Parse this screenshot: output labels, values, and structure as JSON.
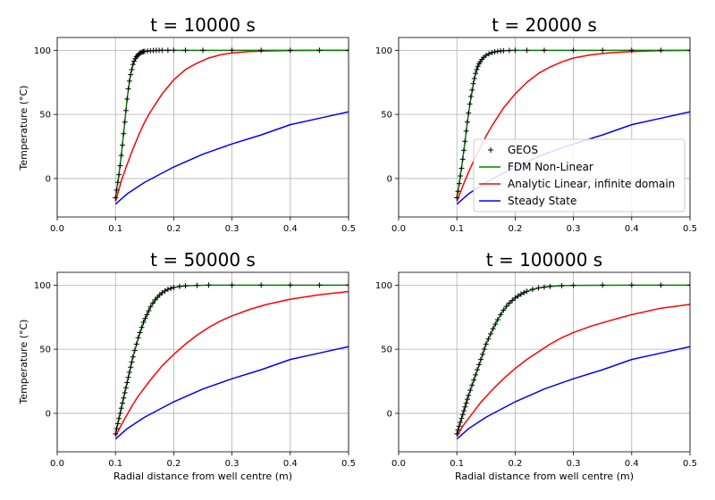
{
  "chart_data": [
    {
      "type": "line",
      "title": "t = 10000 s",
      "xlabel": "",
      "ylabel": "Temperature (°C)",
      "xlim": [
        0.0,
        0.5
      ],
      "ylim": [
        -30,
        110
      ],
      "xticks": [
        0.0,
        0.1,
        0.2,
        0.3,
        0.4,
        0.5
      ],
      "xtick_labels": [
        "0.0",
        "0.1",
        "0.2",
        "0.3",
        "0.4",
        "0.5"
      ],
      "yticks": [
        0,
        50,
        100
      ],
      "ytick_labels": [
        "0",
        "50",
        "100"
      ],
      "grid": true,
      "legend": null,
      "series": [
        {
          "name": "GEOS",
          "style": "markers",
          "color": "#000000",
          "x": [
            0.1,
            0.102,
            0.104,
            0.106,
            0.108,
            0.11,
            0.112,
            0.114,
            0.116,
            0.118,
            0.12,
            0.122,
            0.124,
            0.126,
            0.128,
            0.13,
            0.132,
            0.134,
            0.136,
            0.138,
            0.14,
            0.142,
            0.144,
            0.146,
            0.148,
            0.15,
            0.155,
            0.16,
            0.165,
            0.17,
            0.175,
            0.18,
            0.19,
            0.2,
            0.22,
            0.25,
            0.3,
            0.35,
            0.4,
            0.45,
            0.5
          ],
          "y": [
            -15,
            -9,
            -3,
            3,
            10,
            18,
            26,
            35,
            44,
            53,
            62,
            70,
            76,
            81,
            85,
            89,
            91.5,
            93.5,
            95,
            96,
            97,
            97.8,
            98.3,
            98.7,
            99.0,
            99.2,
            99.5,
            99.7,
            99.8,
            99.9,
            100,
            100,
            100,
            100,
            100,
            100,
            100,
            100,
            100,
            100,
            100
          ]
        },
        {
          "name": "FDM Non-Linear",
          "style": "line",
          "color": "#008000",
          "x": [
            0.1,
            0.105,
            0.11,
            0.115,
            0.12,
            0.125,
            0.13,
            0.135,
            0.14,
            0.145,
            0.15,
            0.16,
            0.17,
            0.18,
            0.2,
            0.25,
            0.3,
            0.4,
            0.5
          ],
          "y": [
            -15,
            0,
            18,
            40,
            62,
            79,
            89,
            94,
            97,
            98.5,
            99.2,
            99.7,
            99.9,
            100,
            100,
            100,
            100,
            100,
            100
          ]
        },
        {
          "name": "Analytic Linear, infinite domain",
          "style": "line",
          "color": "#ff0000",
          "x": [
            0.1,
            0.11,
            0.12,
            0.13,
            0.14,
            0.15,
            0.16,
            0.18,
            0.2,
            0.22,
            0.24,
            0.26,
            0.28,
            0.3,
            0.33,
            0.36,
            0.4,
            0.45,
            0.5
          ],
          "y": [
            -18,
            -2,
            11,
            23,
            34,
            44,
            52,
            66,
            77,
            85,
            90,
            94,
            96.5,
            98,
            99,
            99.5,
            99.8,
            100,
            100
          ]
        },
        {
          "name": "Steady State",
          "style": "line",
          "color": "#0000ff",
          "x": [
            0.1,
            0.12,
            0.15,
            0.2,
            0.25,
            0.3,
            0.35,
            0.4,
            0.45,
            0.5
          ],
          "y": [
            -20,
            -12,
            -3,
            9,
            19,
            27,
            34,
            42,
            47,
            52
          ]
        }
      ]
    },
    {
      "type": "line",
      "title": "t = 20000 s",
      "xlabel": "",
      "ylabel": "",
      "xlim": [
        0.0,
        0.5
      ],
      "ylim": [
        -30,
        110
      ],
      "xticks": [
        0.0,
        0.1,
        0.2,
        0.3,
        0.4,
        0.5
      ],
      "xtick_labels": [
        "0.0",
        "0.1",
        "0.2",
        "0.3",
        "0.4",
        "0.5"
      ],
      "yticks": [
        0,
        50,
        100
      ],
      "ytick_labels": [
        "0",
        "50",
        "100"
      ],
      "grid": true,
      "legend": "lower-right",
      "series": [
        {
          "name": "GEOS",
          "style": "markers",
          "color": "#000000",
          "x": [
            0.1,
            0.102,
            0.104,
            0.106,
            0.108,
            0.11,
            0.112,
            0.114,
            0.116,
            0.118,
            0.12,
            0.122,
            0.124,
            0.126,
            0.128,
            0.13,
            0.132,
            0.134,
            0.136,
            0.138,
            0.14,
            0.143,
            0.146,
            0.15,
            0.155,
            0.16,
            0.165,
            0.17,
            0.175,
            0.18,
            0.19,
            0.2,
            0.22,
            0.25,
            0.3,
            0.35,
            0.4,
            0.45,
            0.5
          ],
          "y": [
            -15,
            -10,
            -4,
            2,
            8,
            15,
            22,
            29,
            37,
            44,
            51,
            58,
            64,
            69,
            74,
            78,
            82,
            85,
            87.5,
            89.5,
            91,
            93,
            94.5,
            96,
            97.3,
            98.2,
            98.8,
            99.2,
            99.5,
            99.7,
            99.9,
            100,
            100,
            100,
            100,
            100,
            100,
            100,
            100
          ]
        },
        {
          "name": "FDM Non-Linear",
          "style": "line",
          "color": "#008000",
          "x": [
            0.1,
            0.105,
            0.11,
            0.115,
            0.12,
            0.125,
            0.13,
            0.135,
            0.14,
            0.145,
            0.15,
            0.16,
            0.17,
            0.18,
            0.2,
            0.25,
            0.3,
            0.4,
            0.5
          ],
          "y": [
            -15,
            -1,
            15,
            33,
            51,
            65,
            78,
            86,
            91,
            94,
            96,
            98.2,
            99.2,
            99.7,
            100,
            100,
            100,
            100,
            100
          ]
        },
        {
          "name": "Analytic Linear, infinite domain",
          "style": "line",
          "color": "#ff0000",
          "x": [
            0.1,
            0.11,
            0.12,
            0.13,
            0.14,
            0.15,
            0.16,
            0.18,
            0.2,
            0.22,
            0.24,
            0.26,
            0.28,
            0.3,
            0.33,
            0.36,
            0.4,
            0.45,
            0.5
          ],
          "y": [
            -18,
            -6,
            5,
            15,
            24,
            33,
            41,
            55,
            66,
            75,
            82,
            87,
            91,
            94,
            96.5,
            98,
            99,
            99.7,
            100
          ]
        },
        {
          "name": "Steady State",
          "style": "line",
          "color": "#0000ff",
          "x": [
            0.1,
            0.12,
            0.15,
            0.2,
            0.25,
            0.3,
            0.35,
            0.4,
            0.45,
            0.5
          ],
          "y": [
            -20,
            -12,
            -3,
            9,
            19,
            27,
            34,
            42,
            47,
            52
          ]
        }
      ]
    },
    {
      "type": "line",
      "title": "t = 50000 s",
      "xlabel": "Radial distance from well centre (m)",
      "ylabel": "Temperature (°C)",
      "xlim": [
        0.0,
        0.5
      ],
      "ylim": [
        -30,
        110
      ],
      "xticks": [
        0.0,
        0.1,
        0.2,
        0.3,
        0.4,
        0.5
      ],
      "xtick_labels": [
        "0.0",
        "0.1",
        "0.2",
        "0.3",
        "0.4",
        "0.5"
      ],
      "yticks": [
        0,
        50,
        100
      ],
      "ytick_labels": [
        "0",
        "50",
        "100"
      ],
      "grid": true,
      "legend": null,
      "series": [
        {
          "name": "GEOS",
          "style": "markers",
          "color": "#000000",
          "x": [
            0.1,
            0.102,
            0.104,
            0.106,
            0.108,
            0.11,
            0.112,
            0.114,
            0.116,
            0.118,
            0.12,
            0.122,
            0.124,
            0.126,
            0.128,
            0.13,
            0.133,
            0.136,
            0.139,
            0.142,
            0.145,
            0.148,
            0.151,
            0.154,
            0.157,
            0.16,
            0.164,
            0.168,
            0.172,
            0.176,
            0.18,
            0.185,
            0.19,
            0.195,
            0.2,
            0.21,
            0.22,
            0.24,
            0.26,
            0.3,
            0.35,
            0.4,
            0.45,
            0.5
          ],
          "y": [
            -16,
            -12,
            -8,
            -4,
            0,
            4,
            8,
            12,
            16,
            20,
            24,
            28,
            32,
            36,
            40,
            44,
            49,
            54,
            59,
            63,
            67,
            71,
            74,
            77,
            80,
            83,
            86,
            88.5,
            90.5,
            92.5,
            94,
            95.5,
            96.7,
            97.5,
            98.2,
            99,
            99.5,
            99.8,
            100,
            100,
            100,
            100,
            100,
            100
          ]
        },
        {
          "name": "FDM Non-Linear",
          "style": "line",
          "color": "#008000",
          "x": [
            0.1,
            0.11,
            0.12,
            0.13,
            0.14,
            0.15,
            0.16,
            0.17,
            0.18,
            0.19,
            0.2,
            0.22,
            0.24,
            0.26,
            0.3,
            0.4,
            0.5
          ],
          "y": [
            -16,
            4,
            24,
            44,
            60,
            73,
            83,
            89.5,
            94,
            96.7,
            98.2,
            99.5,
            99.8,
            100,
            100,
            100,
            100
          ]
        },
        {
          "name": "Analytic Linear, infinite domain",
          "style": "line",
          "color": "#ff0000",
          "x": [
            0.1,
            0.11,
            0.12,
            0.13,
            0.14,
            0.15,
            0.16,
            0.18,
            0.2,
            0.22,
            0.24,
            0.26,
            0.28,
            0.3,
            0.33,
            0.36,
            0.4,
            0.45,
            0.5
          ],
          "y": [
            -18,
            -9,
            -1,
            7,
            14,
            20,
            26,
            37,
            46,
            54,
            61,
            67,
            72,
            76,
            81,
            85,
            89,
            92.5,
            95
          ]
        },
        {
          "name": "Steady State",
          "style": "line",
          "color": "#0000ff",
          "x": [
            0.1,
            0.12,
            0.15,
            0.2,
            0.25,
            0.3,
            0.35,
            0.4,
            0.45,
            0.5
          ],
          "y": [
            -20,
            -12,
            -3,
            9,
            19,
            27,
            34,
            42,
            47,
            52
          ]
        }
      ]
    },
    {
      "type": "line",
      "title": "t = 100000 s",
      "xlabel": "Radial distance from well centre (m)",
      "ylabel": "",
      "xlim": [
        0.0,
        0.5
      ],
      "ylim": [
        -30,
        110
      ],
      "xticks": [
        0.0,
        0.1,
        0.2,
        0.3,
        0.4,
        0.5
      ],
      "xtick_labels": [
        "0.0",
        "0.1",
        "0.2",
        "0.3",
        "0.4",
        "0.5"
      ],
      "yticks": [
        0,
        50,
        100
      ],
      "ytick_labels": [
        "0",
        "50",
        "100"
      ],
      "grid": true,
      "legend": null,
      "series": [
        {
          "name": "GEOS",
          "style": "markers",
          "color": "#000000",
          "x": [
            0.1,
            0.102,
            0.104,
            0.106,
            0.108,
            0.11,
            0.112,
            0.114,
            0.116,
            0.118,
            0.12,
            0.123,
            0.126,
            0.129,
            0.132,
            0.135,
            0.138,
            0.141,
            0.144,
            0.147,
            0.15,
            0.154,
            0.158,
            0.162,
            0.166,
            0.17,
            0.175,
            0.18,
            0.185,
            0.19,
            0.195,
            0.2,
            0.205,
            0.21,
            0.215,
            0.22,
            0.23,
            0.24,
            0.25,
            0.26,
            0.28,
            0.3,
            0.35,
            0.4,
            0.45,
            0.5
          ],
          "y": [
            -16,
            -13,
            -10,
            -7,
            -4,
            -1,
            2,
            5,
            8,
            11,
            14,
            18,
            22,
            26,
            30,
            34,
            38,
            42,
            46,
            50,
            54,
            58,
            62,
            66,
            69.5,
            73,
            77,
            80.5,
            83.5,
            86,
            88,
            90,
            91.5,
            93,
            94.2,
            95.2,
            96.8,
            97.8,
            98.5,
            99,
            99.6,
            99.8,
            100,
            100,
            100,
            100
          ]
        },
        {
          "name": "FDM Non-Linear",
          "style": "line",
          "color": "#008000",
          "x": [
            0.1,
            0.11,
            0.12,
            0.13,
            0.14,
            0.15,
            0.16,
            0.17,
            0.18,
            0.19,
            0.2,
            0.22,
            0.24,
            0.26,
            0.28,
            0.3,
            0.4,
            0.5
          ],
          "y": [
            -16,
            -1,
            14,
            27,
            40,
            54,
            64,
            73,
            80.5,
            86,
            90,
            95.2,
            97.8,
            99,
            99.6,
            99.8,
            100,
            100
          ]
        },
        {
          "name": "Analytic Linear, infinite domain",
          "style": "line",
          "color": "#ff0000",
          "x": [
            0.1,
            0.11,
            0.12,
            0.13,
            0.14,
            0.15,
            0.16,
            0.18,
            0.2,
            0.22,
            0.24,
            0.26,
            0.28,
            0.3,
            0.33,
            0.36,
            0.4,
            0.45,
            0.5
          ],
          "y": [
            -18,
            -10,
            -4,
            2,
            8,
            13,
            18,
            27,
            35,
            42,
            48,
            54,
            59,
            63,
            68,
            72,
            77,
            82,
            85
          ]
        },
        {
          "name": "Steady State",
          "style": "line",
          "color": "#0000ff",
          "x": [
            0.1,
            0.12,
            0.15,
            0.2,
            0.25,
            0.3,
            0.35,
            0.4,
            0.45,
            0.5
          ],
          "y": [
            -20,
            -12,
            -3,
            9,
            19,
            27,
            34,
            42,
            47,
            52
          ]
        }
      ]
    }
  ]
}
